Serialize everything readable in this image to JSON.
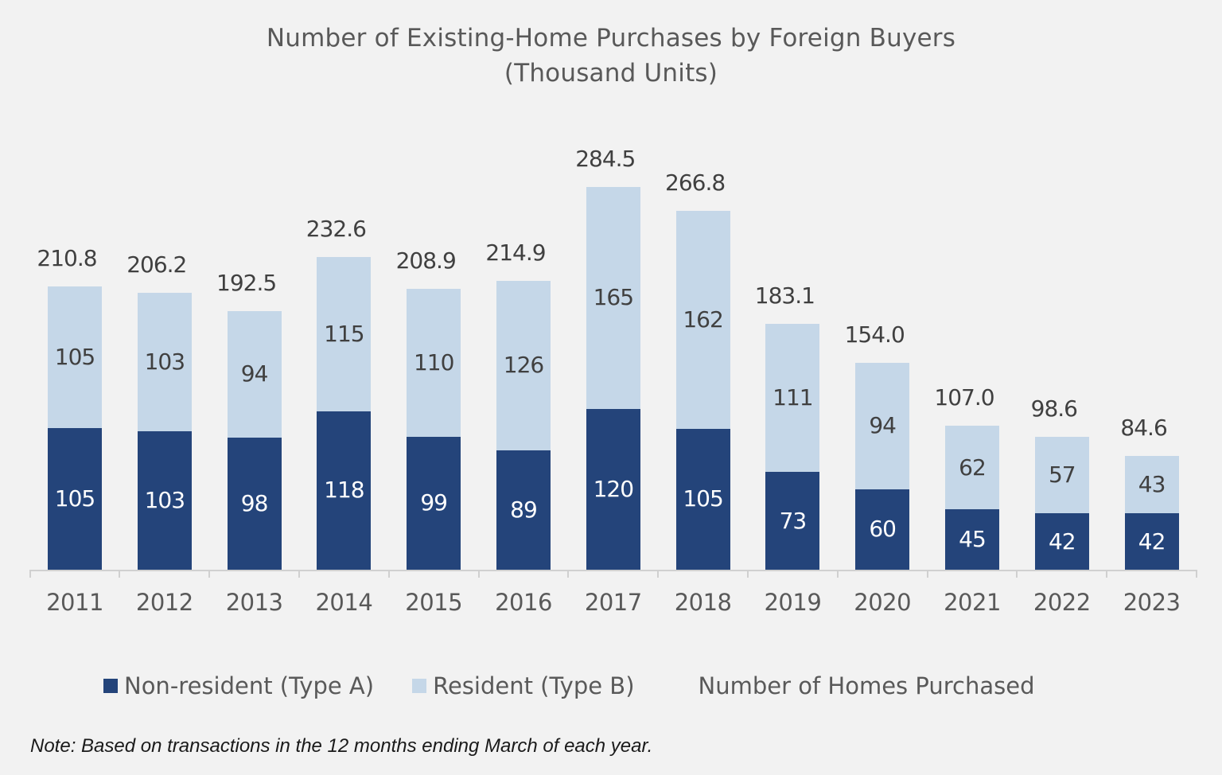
{
  "title": {
    "line1": "Number of Existing-Home Purchases by Foreign Buyers",
    "line2": "(Thousand Units)"
  },
  "colors": {
    "non_resident": "#24447a",
    "resident": "#c5d7e8",
    "background": "#f2f2f2"
  },
  "legend": {
    "items": [
      {
        "label": "Non-resident (Type A)",
        "color": "#24447a"
      },
      {
        "label": "Resident (Type B)",
        "color": "#c5d7e8"
      },
      {
        "label": "Number of Homes Purchased",
        "color": null
      }
    ]
  },
  "note": "Note: Based on transactions in the 12 months ending March of each year.",
  "chart_data": {
    "type": "bar",
    "stacked": true,
    "title": "Number of Existing-Home Purchases by Foreign Buyers (Thousand Units)",
    "xlabel": "",
    "ylabel": "",
    "categories": [
      "2011",
      "2012",
      "2013",
      "2014",
      "2015",
      "2016",
      "2017",
      "2018",
      "2019",
      "2020",
      "2021",
      "2022",
      "2023"
    ],
    "series": [
      {
        "name": "Non-resident (Type A)",
        "color": "#24447a",
        "values": [
          105,
          103,
          98,
          118,
          99,
          89,
          120,
          105,
          73,
          60,
          45,
          42,
          42
        ]
      },
      {
        "name": "Resident (Type B)",
        "color": "#c5d7e8",
        "values": [
          105,
          103,
          94,
          115,
          110,
          126,
          165,
          162,
          111,
          94,
          62,
          57,
          43
        ]
      }
    ],
    "totals": {
      "name": "Number of Homes Purchased",
      "values": [
        "210.8",
        "206.2",
        "192.5",
        "232.6",
        "208.9",
        "214.9",
        "284.5",
        "266.8",
        "183.1",
        "154.0",
        "107.0",
        "98.6",
        "84.6"
      ]
    },
    "ylim": [
      0,
      300
    ],
    "grid": false,
    "legend_position": "bottom"
  }
}
